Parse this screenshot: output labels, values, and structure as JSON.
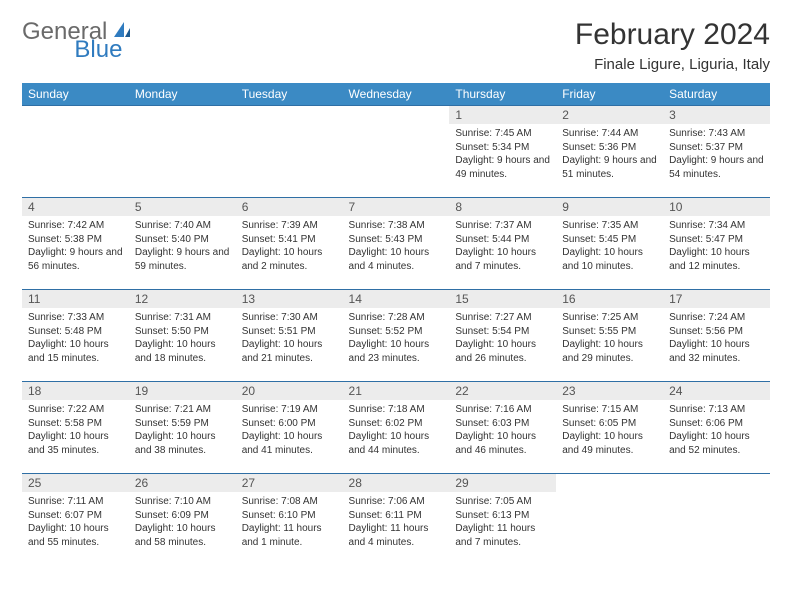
{
  "logo": {
    "text1": "General",
    "text2": "Blue"
  },
  "title": "February 2024",
  "location": "Finale Ligure, Liguria, Italy",
  "colors": {
    "header_bg": "#3b8ac4",
    "header_text": "#ffffff",
    "daynum_bg": "#ececec",
    "row_border": "#2f6fa5",
    "logo_gray": "#6a6a6a",
    "logo_blue": "#2f7bbf"
  },
  "weekdays": [
    "Sunday",
    "Monday",
    "Tuesday",
    "Wednesday",
    "Thursday",
    "Friday",
    "Saturday"
  ],
  "weeks": [
    [
      null,
      null,
      null,
      null,
      {
        "n": "1",
        "sr": "Sunrise: 7:45 AM",
        "ss": "Sunset: 5:34 PM",
        "dl": "Daylight: 9 hours and 49 minutes."
      },
      {
        "n": "2",
        "sr": "Sunrise: 7:44 AM",
        "ss": "Sunset: 5:36 PM",
        "dl": "Daylight: 9 hours and 51 minutes."
      },
      {
        "n": "3",
        "sr": "Sunrise: 7:43 AM",
        "ss": "Sunset: 5:37 PM",
        "dl": "Daylight: 9 hours and 54 minutes."
      }
    ],
    [
      {
        "n": "4",
        "sr": "Sunrise: 7:42 AM",
        "ss": "Sunset: 5:38 PM",
        "dl": "Daylight: 9 hours and 56 minutes."
      },
      {
        "n": "5",
        "sr": "Sunrise: 7:40 AM",
        "ss": "Sunset: 5:40 PM",
        "dl": "Daylight: 9 hours and 59 minutes."
      },
      {
        "n": "6",
        "sr": "Sunrise: 7:39 AM",
        "ss": "Sunset: 5:41 PM",
        "dl": "Daylight: 10 hours and 2 minutes."
      },
      {
        "n": "7",
        "sr": "Sunrise: 7:38 AM",
        "ss": "Sunset: 5:43 PM",
        "dl": "Daylight: 10 hours and 4 minutes."
      },
      {
        "n": "8",
        "sr": "Sunrise: 7:37 AM",
        "ss": "Sunset: 5:44 PM",
        "dl": "Daylight: 10 hours and 7 minutes."
      },
      {
        "n": "9",
        "sr": "Sunrise: 7:35 AM",
        "ss": "Sunset: 5:45 PM",
        "dl": "Daylight: 10 hours and 10 minutes."
      },
      {
        "n": "10",
        "sr": "Sunrise: 7:34 AM",
        "ss": "Sunset: 5:47 PM",
        "dl": "Daylight: 10 hours and 12 minutes."
      }
    ],
    [
      {
        "n": "11",
        "sr": "Sunrise: 7:33 AM",
        "ss": "Sunset: 5:48 PM",
        "dl": "Daylight: 10 hours and 15 minutes."
      },
      {
        "n": "12",
        "sr": "Sunrise: 7:31 AM",
        "ss": "Sunset: 5:50 PM",
        "dl": "Daylight: 10 hours and 18 minutes."
      },
      {
        "n": "13",
        "sr": "Sunrise: 7:30 AM",
        "ss": "Sunset: 5:51 PM",
        "dl": "Daylight: 10 hours and 21 minutes."
      },
      {
        "n": "14",
        "sr": "Sunrise: 7:28 AM",
        "ss": "Sunset: 5:52 PM",
        "dl": "Daylight: 10 hours and 23 minutes."
      },
      {
        "n": "15",
        "sr": "Sunrise: 7:27 AM",
        "ss": "Sunset: 5:54 PM",
        "dl": "Daylight: 10 hours and 26 minutes."
      },
      {
        "n": "16",
        "sr": "Sunrise: 7:25 AM",
        "ss": "Sunset: 5:55 PM",
        "dl": "Daylight: 10 hours and 29 minutes."
      },
      {
        "n": "17",
        "sr": "Sunrise: 7:24 AM",
        "ss": "Sunset: 5:56 PM",
        "dl": "Daylight: 10 hours and 32 minutes."
      }
    ],
    [
      {
        "n": "18",
        "sr": "Sunrise: 7:22 AM",
        "ss": "Sunset: 5:58 PM",
        "dl": "Daylight: 10 hours and 35 minutes."
      },
      {
        "n": "19",
        "sr": "Sunrise: 7:21 AM",
        "ss": "Sunset: 5:59 PM",
        "dl": "Daylight: 10 hours and 38 minutes."
      },
      {
        "n": "20",
        "sr": "Sunrise: 7:19 AM",
        "ss": "Sunset: 6:00 PM",
        "dl": "Daylight: 10 hours and 41 minutes."
      },
      {
        "n": "21",
        "sr": "Sunrise: 7:18 AM",
        "ss": "Sunset: 6:02 PM",
        "dl": "Daylight: 10 hours and 44 minutes."
      },
      {
        "n": "22",
        "sr": "Sunrise: 7:16 AM",
        "ss": "Sunset: 6:03 PM",
        "dl": "Daylight: 10 hours and 46 minutes."
      },
      {
        "n": "23",
        "sr": "Sunrise: 7:15 AM",
        "ss": "Sunset: 6:05 PM",
        "dl": "Daylight: 10 hours and 49 minutes."
      },
      {
        "n": "24",
        "sr": "Sunrise: 7:13 AM",
        "ss": "Sunset: 6:06 PM",
        "dl": "Daylight: 10 hours and 52 minutes."
      }
    ],
    [
      {
        "n": "25",
        "sr": "Sunrise: 7:11 AM",
        "ss": "Sunset: 6:07 PM",
        "dl": "Daylight: 10 hours and 55 minutes."
      },
      {
        "n": "26",
        "sr": "Sunrise: 7:10 AM",
        "ss": "Sunset: 6:09 PM",
        "dl": "Daylight: 10 hours and 58 minutes."
      },
      {
        "n": "27",
        "sr": "Sunrise: 7:08 AM",
        "ss": "Sunset: 6:10 PM",
        "dl": "Daylight: 11 hours and 1 minute."
      },
      {
        "n": "28",
        "sr": "Sunrise: 7:06 AM",
        "ss": "Sunset: 6:11 PM",
        "dl": "Daylight: 11 hours and 4 minutes."
      },
      {
        "n": "29",
        "sr": "Sunrise: 7:05 AM",
        "ss": "Sunset: 6:13 PM",
        "dl": "Daylight: 11 hours and 7 minutes."
      },
      null,
      null
    ]
  ]
}
